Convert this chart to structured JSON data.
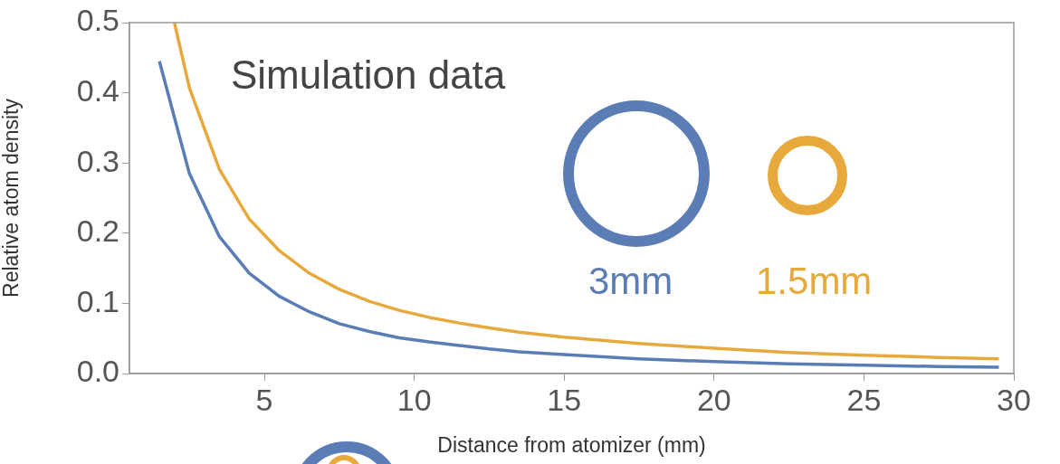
{
  "chart_data": {
    "type": "line",
    "xlabel": "Distance from atomizer (mm)",
    "ylabel": "Relative atom density",
    "annotations": [
      "Simulation data",
      "3mm",
      "1.5mm"
    ],
    "xlim": [
      0.5,
      30
    ],
    "xticks": [
      5,
      10,
      15,
      20,
      25,
      30
    ],
    "ylim": [
      0,
      0.5
    ],
    "yticks": [
      {
        "value": 0,
        "label": "0.0"
      },
      0.1,
      0.2,
      0.3,
      0.4,
      0.5
    ],
    "grid": false,
    "legend": false,
    "marker": "none",
    "line_style": "solid",
    "series": [
      {
        "color": "#5b7db5",
        "x": [
          1.5,
          2.5,
          3.5,
          4.5,
          5.5,
          6.5,
          7.5,
          8.5,
          9.5,
          10.5,
          11.5,
          12.5,
          13.5,
          15,
          17.5,
          20,
          22.5,
          25,
          27.5,
          29.5
        ],
        "values": [
          0.445,
          0.285,
          0.195,
          0.143,
          0.11,
          0.088,
          0.071,
          0.06,
          0.051,
          0.045,
          0.04,
          0.035,
          0.031,
          0.027,
          0.021,
          0.017,
          0.014,
          0.012,
          0.01,
          0.009
        ]
      },
      {
        "color": "#e8a93c",
        "x": [
          2.0,
          2.5,
          3.5,
          4.5,
          5.5,
          6.5,
          7.5,
          8.5,
          9.5,
          10.5,
          11.5,
          12.5,
          13.5,
          15,
          17.5,
          20,
          22.5,
          25,
          27.5,
          29.5
        ],
        "values": [
          0.5,
          0.407,
          0.291,
          0.22,
          0.175,
          0.143,
          0.12,
          0.103,
          0.09,
          0.08,
          0.072,
          0.065,
          0.059,
          0.052,
          0.043,
          0.036,
          0.03,
          0.026,
          0.023,
          0.021
        ]
      }
    ]
  }
}
